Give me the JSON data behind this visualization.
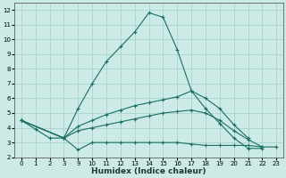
{
  "xlabel": "Humidex (Indice chaleur)",
  "bg_color": "#cceae6",
  "grid_color": "#aad4ce",
  "line_color": "#1a6e64",
  "xlim": [
    -0.5,
    23.5
  ],
  "ylim": [
    2,
    12.5
  ],
  "xticks": [
    0,
    1,
    2,
    3,
    9,
    10,
    11,
    12,
    13,
    14,
    15,
    16,
    17,
    18,
    19,
    20,
    21,
    22,
    23
  ],
  "yticks": [
    2,
    3,
    4,
    5,
    6,
    7,
    8,
    9,
    10,
    11,
    12
  ],
  "lines": [
    {
      "x": [
        0,
        1,
        2,
        3,
        9,
        10,
        11,
        12,
        13,
        14,
        15,
        16,
        17,
        18,
        19,
        20,
        21,
        22
      ],
      "y": [
        4.5,
        3.9,
        3.3,
        3.3,
        5.3,
        7.0,
        8.5,
        9.5,
        10.5,
        11.8,
        11.5,
        9.3,
        6.5,
        5.3,
        4.3,
        3.3,
        2.6,
        2.6
      ]
    },
    {
      "x": [
        0,
        3,
        9,
        10,
        11,
        12,
        13,
        14,
        15,
        16,
        17,
        18,
        19,
        20,
        21
      ],
      "y": [
        4.5,
        3.3,
        4.1,
        4.5,
        4.9,
        5.2,
        5.5,
        5.7,
        5.9,
        6.1,
        6.5,
        6.0,
        5.3,
        4.2,
        3.3
      ]
    },
    {
      "x": [
        0,
        3,
        9,
        10,
        11,
        12,
        13,
        14,
        15,
        16,
        17,
        18,
        19,
        20,
        21,
        22,
        23
      ],
      "y": [
        4.5,
        3.3,
        3.8,
        4.0,
        4.2,
        4.4,
        4.6,
        4.8,
        5.0,
        5.1,
        5.2,
        5.0,
        4.5,
        3.8,
        3.2,
        2.7,
        null
      ]
    },
    {
      "x": [
        0,
        3,
        9,
        10,
        11,
        12,
        13,
        14,
        15,
        16,
        17,
        18,
        19,
        20,
        21,
        22,
        23
      ],
      "y": [
        4.5,
        3.3,
        2.5,
        3.0,
        3.0,
        3.0,
        3.0,
        3.0,
        3.0,
        3.0,
        2.9,
        2.8,
        2.8,
        2.8,
        2.8,
        2.7,
        2.7
      ]
    }
  ]
}
